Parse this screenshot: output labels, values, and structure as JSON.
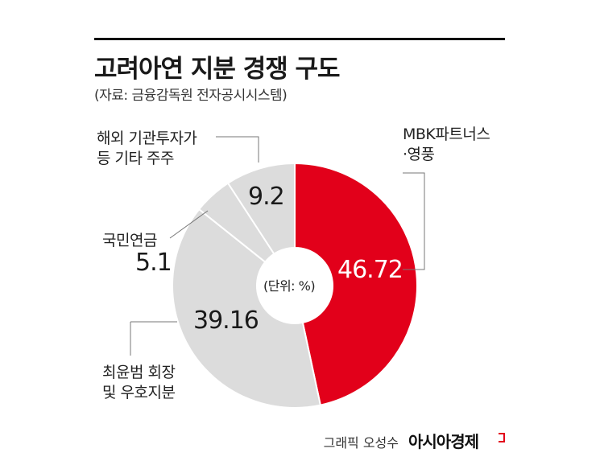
{
  "header": {
    "title": "고려아연 지분 경쟁 구도",
    "source": "(자료: 금융감독원 전자공시시스템)"
  },
  "chart_data": {
    "type": "pie",
    "unit_label": "(단위: %)",
    "slices": [
      {
        "label": "MBK파트너스 ·영풍",
        "label_lines": [
          "MBK파트너스",
          "·영풍"
        ],
        "value": 46.72,
        "value_text": "46.72",
        "color": "#e2001a"
      },
      {
        "label": "최윤범 회장 및 우호지분",
        "label_lines": [
          "최윤범 회장",
          "및 우호지분"
        ],
        "value": 39.16,
        "value_text": "39.16",
        "color": "#dcdcdc"
      },
      {
        "label": "국민연금",
        "label_lines": [
          "국민연금"
        ],
        "value": 5.1,
        "value_text": "5.1",
        "color": "#dcdcdc"
      },
      {
        "label": "해외 기관투자가 등 기타 주주",
        "label_lines": [
          "해외 기관투자가",
          "등 기타 주주"
        ],
        "value": 9.2,
        "value_text": "9.2",
        "color": "#dcdcdc"
      }
    ]
  },
  "footer": {
    "credit": "그래픽 오성수",
    "brand": "아시아경제"
  }
}
